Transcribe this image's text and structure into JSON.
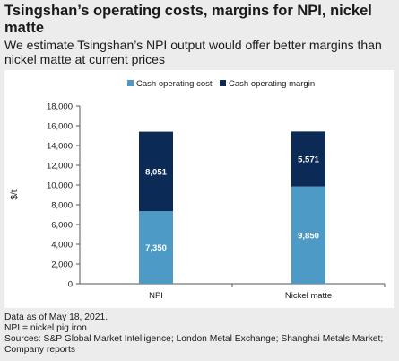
{
  "header": {
    "title": "Tsingshan’s operating costs, margins for NPI, nickel matte",
    "subtitle": "We estimate Tsingshan’s NPI output would offer better margins than nickel matte at current prices"
  },
  "footer": {
    "date_note": "Data as of May 18, 2021.",
    "abbrev_note": "NPI = nickel pig iron",
    "sources": "Sources: S&P Global Market Intelligence; London Metal Exchange; Shanghai Metals Market; Company reports"
  },
  "chart_data": {
    "type": "bar",
    "stacked": true,
    "categories": [
      "NPI",
      "Nickel matte"
    ],
    "series": [
      {
        "name": "Cash operating cost",
        "values": [
          7350,
          9850
        ],
        "labels": [
          "7,350",
          "9,850"
        ],
        "color": "#4e9ac7"
      },
      {
        "name": "Cash operating margin",
        "values": [
          8051,
          5571
        ],
        "labels": [
          "8,051",
          "5,571"
        ],
        "color": "#0b2a55"
      }
    ],
    "ylabel": "$/t",
    "ylim": [
      0,
      18000
    ],
    "yticks": [
      0,
      2000,
      4000,
      6000,
      8000,
      10000,
      12000,
      14000,
      16000,
      18000
    ],
    "ytick_labels": [
      "0",
      "2,000",
      "4,000",
      "6,000",
      "8,000",
      "10,000",
      "12,000",
      "14,000",
      "16,000",
      "18,000"
    ],
    "legend_position": "top",
    "grid": false
  }
}
